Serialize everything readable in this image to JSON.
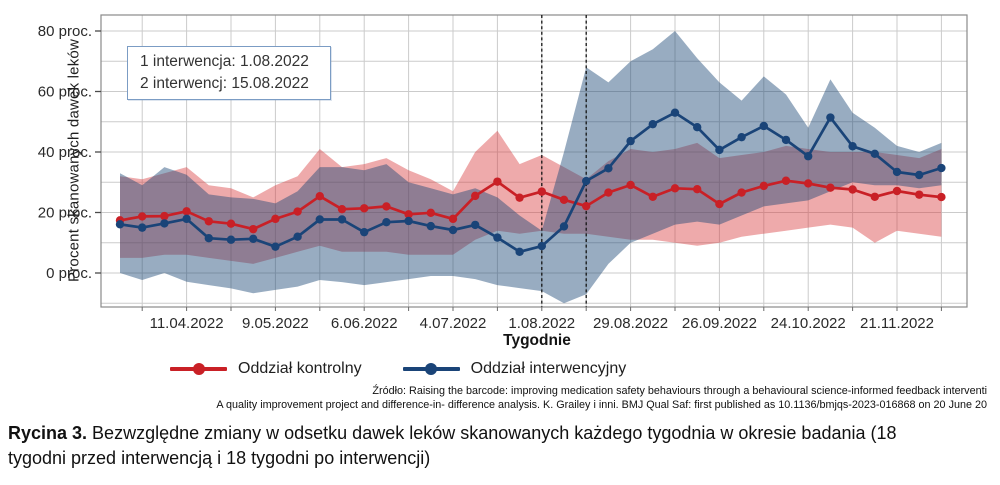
{
  "figure": {
    "source_line1": "Źródło: Raising the barcode: improving medication safety behaviours through a behavioural science-informed feedback interventi",
    "source_line2": "A quality improvement project and difference-in- difference analysis. K. Grailey i inni.  BMJ Qual Saf: first published as 10.1136/bmjqs-2023-016868 on 20 June 20",
    "caption_label": "Rycina 3.",
    "caption_text": " Bezwzględne zmiany w odsetku dawek leków skanowanych każdego tygodnia w okresie badania (18 tygodni przed interwencją i 18 tygodni po interwencji)"
  },
  "chart_data": {
    "type": "line",
    "title": "",
    "xlabel": "Tygodnie",
    "ylabel": "Procent skanowanych dawek leków",
    "x_unit": "weekly observations (38 weeks)",
    "ylim": [
      -12,
      85
    ],
    "grid": true,
    "legend_position": "bottom",
    "y_ticks": [
      {
        "value": 0,
        "label": "0 proc."
      },
      {
        "value": 20,
        "label": "20 proc."
      },
      {
        "value": 40,
        "label": "40 proc."
      },
      {
        "value": 60,
        "label": "60 proc."
      },
      {
        "value": 80,
        "label": "80 proc."
      }
    ],
    "x_ticks": [
      {
        "week": 3,
        "label": "11.04.2022"
      },
      {
        "week": 7,
        "label": "9.05.2022"
      },
      {
        "week": 11,
        "label": "6.06.2022"
      },
      {
        "week": 15,
        "label": "4.07.2022"
      },
      {
        "week": 19,
        "label": "1.08.2022"
      },
      {
        "week": 23,
        "label": "29.08.2022"
      },
      {
        "week": 27,
        "label": "26.09.2022"
      },
      {
        "week": 31,
        "label": "24.10.2022"
      },
      {
        "week": 35,
        "label": "21.11.2022"
      }
    ],
    "intervention_weeks": [
      19,
      21
    ],
    "annotation": {
      "line1": "1 interwencja: 1.08.2022",
      "line2": "2 interwencj: 15.08.2022"
    },
    "series": [
      {
        "name": "Oddział kontrolny",
        "color": "#c92026",
        "band_color": "rgba(214,52,56,0.42)",
        "values": [
          17.4,
          18.7,
          18.8,
          20.4,
          17.1,
          16.3,
          14.5,
          17.9,
          20.3,
          25.4,
          21.1,
          21.4,
          22.0,
          19.4,
          19.9,
          17.9,
          25.5,
          30.2,
          24.9,
          26.9,
          24.2,
          22.1,
          26.6,
          29.1,
          25.2,
          28.0,
          27.7,
          22.8,
          26.6,
          28.8,
          30.5,
          29.6,
          28.2,
          27.6,
          25.2,
          27.1,
          25.9,
          25.1
        ],
        "upper": [
          32,
          31,
          33,
          35,
          29,
          28,
          25,
          29,
          32,
          41,
          35,
          36,
          38,
          34,
          31,
          27,
          40,
          47,
          36,
          39,
          35,
          31,
          37,
          41,
          40,
          41,
          43,
          38,
          39,
          40,
          42,
          41,
          40,
          40,
          40,
          39,
          38,
          41
        ],
        "lower": [
          5,
          5,
          6,
          6,
          5,
          4,
          3,
          5,
          7,
          9,
          7,
          7,
          7,
          6,
          6,
          6,
          11,
          14,
          13,
          14,
          13,
          13,
          12,
          11,
          11,
          10,
          9,
          10,
          12,
          13,
          14,
          15,
          16,
          15,
          10,
          14,
          13,
          12
        ]
      },
      {
        "name": "Oddział interwencyjny",
        "color": "#1a4478",
        "band_color": "rgba(27,72,118,0.45)",
        "values": [
          16.1,
          15.0,
          16.4,
          17.9,
          11.5,
          11.0,
          11.3,
          8.7,
          12.0,
          17.7,
          17.7,
          13.5,
          16.8,
          17.2,
          15.5,
          14.2,
          15.9,
          11.7,
          7.0,
          8.9,
          15.4,
          30.4,
          34.6,
          43.6,
          49.2,
          53.0,
          48.2,
          40.7,
          44.9,
          48.6,
          44.0,
          38.6,
          51.4,
          41.9,
          39.4,
          33.4,
          32.4,
          34.7
        ],
        "upper": [
          33,
          29,
          35,
          32.5,
          26,
          25,
          24.5,
          23,
          27,
          35,
          35,
          34,
          36,
          30,
          28,
          26,
          28,
          25,
          19,
          14,
          40,
          68,
          63,
          70,
          74,
          80,
          71,
          63,
          57,
          65,
          59,
          48,
          64,
          53,
          48,
          42,
          40,
          43
        ],
        "lower": [
          0,
          -2.3,
          0,
          -2.9,
          -4,
          -5.1,
          -6.7,
          -5.6,
          -4.5,
          -2.3,
          -3,
          -4,
          -3,
          -2,
          -1,
          -1,
          -2,
          -4,
          -5,
          -6,
          -10,
          -7,
          3,
          10,
          13,
          16,
          17,
          16,
          19,
          22,
          23,
          24,
          27,
          30,
          29,
          29,
          28,
          29
        ]
      }
    ]
  }
}
